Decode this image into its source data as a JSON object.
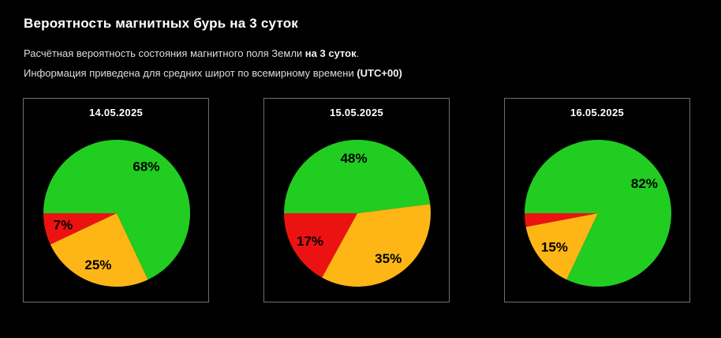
{
  "header": {
    "title": "Вероятность магнитных бурь на 3 суток",
    "subtitle_line1": {
      "text": "Расчётная вероятность состояния магнитного поля Земли ",
      "bold": "на 3 суток",
      "suffix": "."
    },
    "subtitle_line2": {
      "text": "Информация приведена для средних широт по всемирному времени ",
      "bold": "(UTC+00)"
    }
  },
  "colors": {
    "green": "#21CD21",
    "red": "#ED1212",
    "orange": "#FDB615",
    "panel_border": "#6e6e6e",
    "background": "#000000",
    "slice_label": "#000000",
    "date_label": "#ffffff"
  },
  "chart_data": [
    {
      "type": "pie",
      "title": "14.05.2025",
      "unit": "%",
      "start_angle": 180,
      "direction": "counterclockwise",
      "legend": "none",
      "slices": [
        {
          "color_name": "red",
          "color": "#ED1212",
          "value": 7,
          "label": "7%"
        },
        {
          "color_name": "orange",
          "color": "#FDB615",
          "value": 25,
          "label": "25%"
        },
        {
          "color_name": "green",
          "color": "#21CD21",
          "value": 68,
          "label": "68%"
        }
      ]
    },
    {
      "type": "pie",
      "title": "15.05.2025",
      "unit": "%",
      "start_angle": 180,
      "direction": "counterclockwise",
      "legend": "none",
      "slices": [
        {
          "color_name": "red",
          "color": "#ED1212",
          "value": 17,
          "label": "17%"
        },
        {
          "color_name": "orange",
          "color": "#FDB615",
          "value": 35,
          "label": "35%"
        },
        {
          "color_name": "green",
          "color": "#21CD21",
          "value": 48,
          "label": "48%"
        }
      ]
    },
    {
      "type": "pie",
      "title": "16.05.2025",
      "unit": "%",
      "start_angle": 180,
      "direction": "counterclockwise",
      "legend": "none",
      "slices": [
        {
          "color_name": "red",
          "color": "#ED1212",
          "value": 3,
          "label": null
        },
        {
          "color_name": "orange",
          "color": "#FDB615",
          "value": 15,
          "label": "15%"
        },
        {
          "color_name": "green",
          "color": "#21CD21",
          "value": 82,
          "label": "82%"
        }
      ]
    }
  ]
}
